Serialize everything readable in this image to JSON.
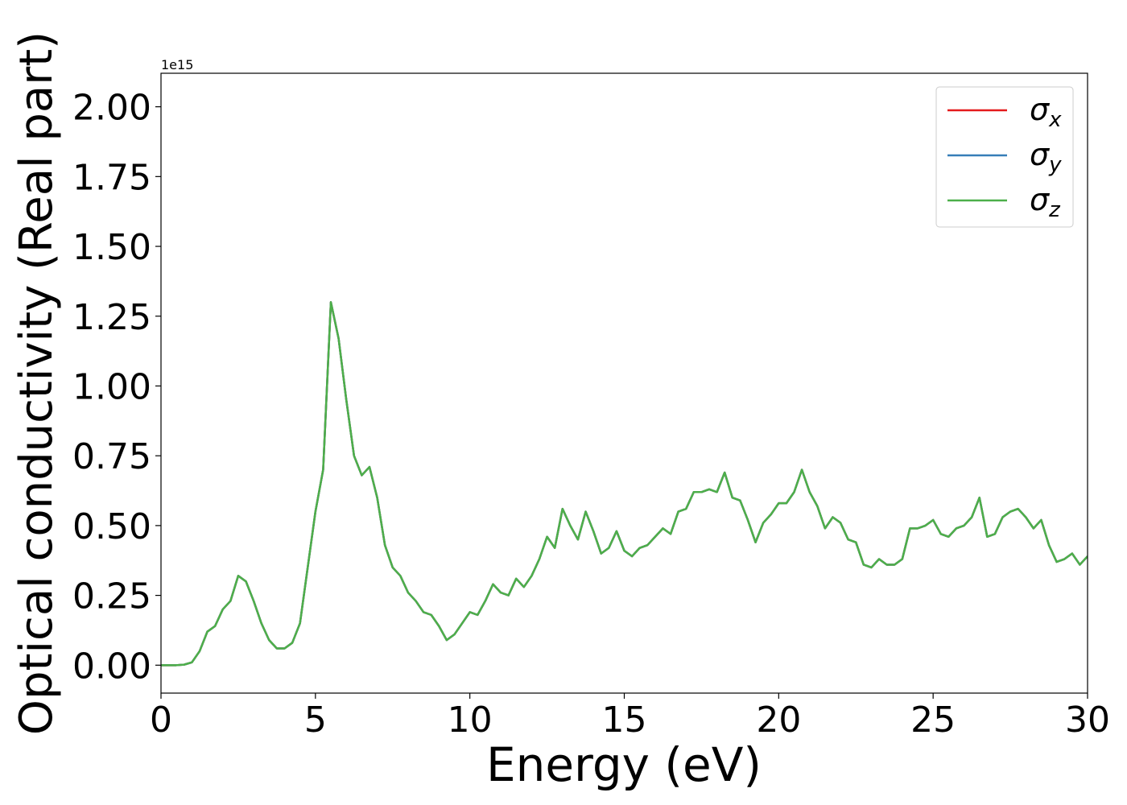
{
  "chart_data": {
    "type": "line",
    "x_label": "Energy (eV)",
    "y_label": "Optical conductivity (Real part)",
    "offset_label": "1e15",
    "x": [
      0,
      0.25,
      0.5,
      0.75,
      1,
      1.25,
      1.5,
      1.75,
      2,
      2.25,
      2.5,
      2.75,
      3,
      3.25,
      3.5,
      3.75,
      4,
      4.25,
      4.5,
      4.75,
      5,
      5.25,
      5.5,
      5.75,
      6,
      6.25,
      6.5,
      6.75,
      7,
      7.25,
      7.5,
      7.75,
      8,
      8.25,
      8.5,
      8.75,
      9,
      9.25,
      9.5,
      9.75,
      10,
      10.25,
      10.5,
      10.75,
      11,
      11.25,
      11.5,
      11.75,
      12,
      12.25,
      12.5,
      12.75,
      13,
      13.25,
      13.5,
      13.75,
      14,
      14.25,
      14.5,
      14.75,
      15,
      15.25,
      15.5,
      15.75,
      16,
      16.25,
      16.5,
      16.75,
      17,
      17.25,
      17.5,
      17.75,
      18,
      18.25,
      18.5,
      18.75,
      19,
      19.25,
      19.5,
      19.75,
      20,
      20.25,
      20.5,
      20.75,
      21,
      21.25,
      21.5,
      21.75,
      22,
      22.25,
      22.5,
      22.75,
      23,
      23.25,
      23.5,
      23.75,
      24,
      24.25,
      24.5,
      24.75,
      25,
      25.25,
      25.5,
      25.75,
      26,
      26.25,
      26.5,
      26.75,
      27,
      27.25,
      27.5,
      27.75,
      28,
      28.25,
      28.5,
      28.75,
      29,
      29.25,
      29.5,
      29.75,
      30
    ],
    "series": [
      {
        "name": "σx",
        "color": "#e41a1c",
        "values": [
          0,
          0,
          0,
          0.002,
          0.01,
          0.05,
          0.12,
          0.14,
          0.2,
          0.23,
          0.32,
          0.3,
          0.23,
          0.15,
          0.09,
          0.06,
          0.06,
          0.08,
          0.15,
          0.35,
          0.55,
          0.7,
          1.3,
          1.17,
          0.95,
          0.75,
          0.68,
          0.71,
          0.6,
          0.43,
          0.35,
          0.32,
          0.26,
          0.23,
          0.19,
          0.18,
          0.14,
          0.09,
          0.11,
          0.15,
          0.19,
          0.18,
          0.23,
          0.29,
          0.26,
          0.25,
          0.31,
          0.28,
          0.32,
          0.38,
          0.46,
          0.42,
          0.56,
          0.5,
          0.45,
          0.55,
          0.48,
          0.4,
          0.42,
          0.48,
          0.41,
          0.39,
          0.42,
          0.43,
          0.46,
          0.49,
          0.47,
          0.55,
          0.56,
          0.62,
          0.62,
          0.63,
          0.62,
          0.69,
          0.6,
          0.59,
          0.52,
          0.44,
          0.51,
          0.54,
          0.58,
          0.58,
          0.62,
          0.7,
          0.62,
          0.57,
          0.49,
          0.53,
          0.51,
          0.45,
          0.44,
          0.36,
          0.35,
          0.38,
          0.36,
          0.36,
          0.38,
          0.49,
          0.49,
          0.5,
          0.52,
          0.47,
          0.46,
          0.49,
          0.5,
          0.53,
          0.6,
          0.46,
          0.47,
          0.53,
          0.55,
          0.56,
          0.53,
          0.49,
          0.52,
          0.43,
          0.37,
          0.38,
          0.4,
          0.36,
          0.39
        ]
      },
      {
        "name": "σy",
        "color": "#377eb8",
        "values": [
          0,
          0,
          0,
          0.002,
          0.01,
          0.05,
          0.12,
          0.14,
          0.2,
          0.23,
          0.32,
          0.3,
          0.23,
          0.15,
          0.09,
          0.06,
          0.06,
          0.08,
          0.15,
          0.35,
          0.55,
          0.7,
          1.3,
          1.17,
          0.95,
          0.75,
          0.68,
          0.71,
          0.6,
          0.43,
          0.35,
          0.32,
          0.26,
          0.23,
          0.19,
          0.18,
          0.14,
          0.09,
          0.11,
          0.15,
          0.19,
          0.18,
          0.23,
          0.29,
          0.26,
          0.25,
          0.31,
          0.28,
          0.32,
          0.38,
          0.46,
          0.42,
          0.56,
          0.5,
          0.45,
          0.55,
          0.48,
          0.4,
          0.42,
          0.48,
          0.41,
          0.39,
          0.42,
          0.43,
          0.46,
          0.49,
          0.47,
          0.55,
          0.56,
          0.62,
          0.62,
          0.63,
          0.62,
          0.69,
          0.6,
          0.59,
          0.52,
          0.44,
          0.51,
          0.54,
          0.58,
          0.58,
          0.62,
          0.7,
          0.62,
          0.57,
          0.49,
          0.53,
          0.51,
          0.45,
          0.44,
          0.36,
          0.35,
          0.38,
          0.36,
          0.36,
          0.38,
          0.49,
          0.49,
          0.5,
          0.52,
          0.47,
          0.46,
          0.49,
          0.5,
          0.53,
          0.6,
          0.46,
          0.47,
          0.53,
          0.55,
          0.56,
          0.53,
          0.49,
          0.52,
          0.43,
          0.37,
          0.38,
          0.4,
          0.36,
          0.39
        ]
      },
      {
        "name": "σz",
        "color": "#4daf4a",
        "values": [
          0,
          0,
          0,
          0.002,
          0.01,
          0.05,
          0.12,
          0.14,
          0.2,
          0.23,
          0.32,
          0.3,
          0.23,
          0.15,
          0.09,
          0.06,
          0.06,
          0.08,
          0.15,
          0.35,
          0.55,
          0.7,
          1.3,
          1.17,
          0.95,
          0.75,
          0.68,
          0.71,
          0.6,
          0.43,
          0.35,
          0.32,
          0.26,
          0.23,
          0.19,
          0.18,
          0.14,
          0.09,
          0.11,
          0.15,
          0.19,
          0.18,
          0.23,
          0.29,
          0.26,
          0.25,
          0.31,
          0.28,
          0.32,
          0.38,
          0.46,
          0.42,
          0.56,
          0.5,
          0.45,
          0.55,
          0.48,
          0.4,
          0.42,
          0.48,
          0.41,
          0.39,
          0.42,
          0.43,
          0.46,
          0.49,
          0.47,
          0.55,
          0.56,
          0.62,
          0.62,
          0.63,
          0.62,
          0.69,
          0.6,
          0.59,
          0.52,
          0.44,
          0.51,
          0.54,
          0.58,
          0.58,
          0.62,
          0.7,
          0.62,
          0.57,
          0.49,
          0.53,
          0.51,
          0.45,
          0.44,
          0.36,
          0.35,
          0.38,
          0.36,
          0.36,
          0.38,
          0.49,
          0.49,
          0.5,
          0.52,
          0.47,
          0.46,
          0.49,
          0.5,
          0.53,
          0.6,
          0.46,
          0.47,
          0.53,
          0.55,
          0.56,
          0.53,
          0.49,
          0.52,
          0.43,
          0.37,
          0.38,
          0.4,
          0.36,
          0.39
        ]
      }
    ],
    "xlim": [
      0,
      30
    ],
    "xticks": [
      0,
      5,
      10,
      15,
      20,
      25,
      30
    ],
    "ylim": [
      -0.1,
      2.12
    ],
    "yticks": [
      {
        "value": 0,
        "label": "0.00"
      },
      {
        "value": 0.25,
        "label": "0.25"
      },
      {
        "value": 0.5,
        "label": "0.50"
      },
      {
        "value": 0.75,
        "label": "0.75"
      },
      {
        "value": 1,
        "label": "1.00"
      },
      {
        "value": 1.25,
        "label": "1.25"
      },
      {
        "value": 1.5,
        "label": "1.50"
      },
      {
        "value": 1.75,
        "label": "1.75"
      },
      {
        "value": 2,
        "label": "2.00"
      }
    ],
    "legend": "upper right",
    "grid": false
  }
}
